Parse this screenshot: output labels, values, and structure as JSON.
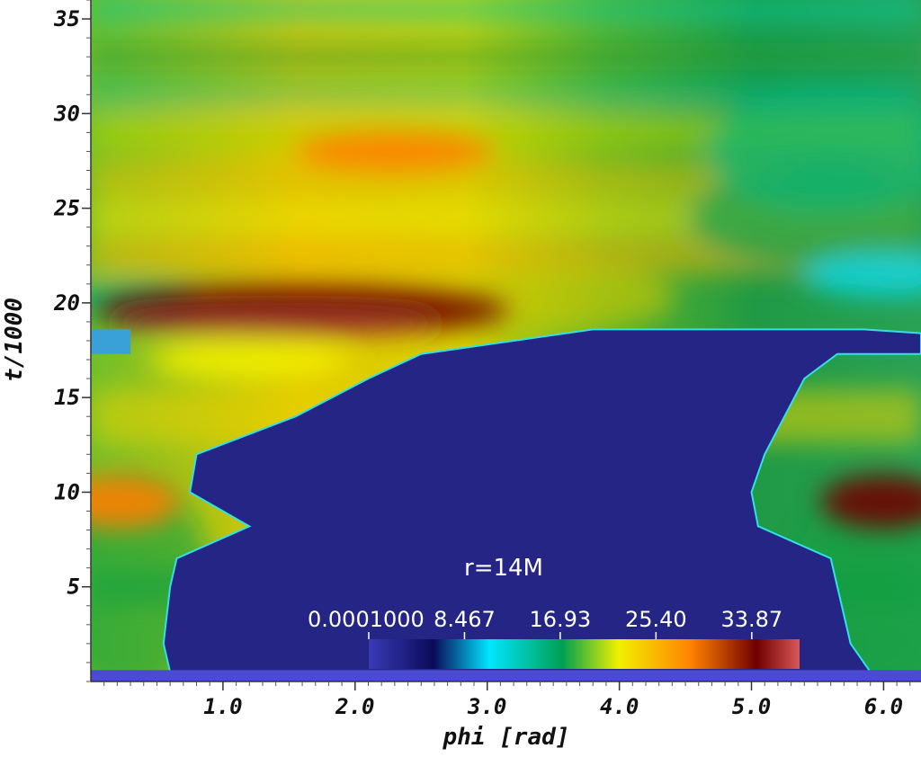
{
  "chart_data": {
    "type": "heatmap",
    "title": "",
    "xlabel": "phi [rad]",
    "ylabel": "t/1000",
    "xlim": [
      0.0,
      6.283
    ],
    "ylim": [
      0.0,
      36.0
    ],
    "x_ticks": [
      1.0,
      2.0,
      3.0,
      4.0,
      5.0,
      6.0
    ],
    "x_tick_labels": [
      "1.0",
      "2.0",
      "3.0",
      "4.0",
      "5.0",
      "6.0"
    ],
    "y_ticks": [
      5,
      10,
      15,
      20,
      25,
      30,
      35
    ],
    "y_tick_labels": [
      "5",
      "10",
      "15",
      "20",
      "25",
      "30",
      "35"
    ],
    "annotation": "r=14M",
    "colorbar": {
      "min": 0.0001,
      "max": 38.1,
      "ticks": [
        0.0001,
        8.467,
        16.93,
        25.4,
        33.87
      ],
      "tick_labels": [
        "0.0001000",
        "8.467",
        "16.93",
        "25.40",
        "33.87"
      ],
      "colormap_stops": [
        "#3a3ab8",
        "#0a0a5a",
        "#00e6ff",
        "#00a050",
        "#f0f000",
        "#ff8000",
        "#700000",
        "#d85858"
      ]
    },
    "empty_region": {
      "description_value": 0.0001,
      "t_top": 18.6,
      "boundary": [
        {
          "t": 0.5,
          "phi_left": 0.6,
          "phi_right": 5.9
        },
        {
          "t": 2.0,
          "phi_left": 0.55,
          "phi_right": 5.75
        },
        {
          "t": 5.0,
          "phi_left": 0.6,
          "phi_right": 5.65
        },
        {
          "t": 6.5,
          "phi_left": 0.65,
          "phi_right": 5.6
        },
        {
          "t": 8.2,
          "phi_left": 1.2,
          "phi_right": 5.05
        },
        {
          "t": 10.0,
          "phi_left": 0.75,
          "phi_right": 5.0
        },
        {
          "t": 12.0,
          "phi_left": 0.8,
          "phi_right": 5.1
        },
        {
          "t": 14.0,
          "phi_left": 1.55,
          "phi_right": 5.25
        },
        {
          "t": 16.0,
          "phi_left": 2.1,
          "phi_right": 5.4
        },
        {
          "t": 17.3,
          "phi_left": 2.5,
          "phi_right": 5.65
        },
        {
          "t": 18.6,
          "phi_left": 3.8,
          "phi_right": 5.85
        }
      ]
    },
    "hotspots": [
      {
        "phi": 1.6,
        "t": 19.6,
        "value": 33.0
      },
      {
        "phi": 0.2,
        "t": 9.5,
        "value": 28.0
      },
      {
        "phi": 6.0,
        "t": 9.5,
        "value": 30.0
      },
      {
        "phi": 2.3,
        "t": 28.0,
        "value": 24.0
      },
      {
        "phi": 1.2,
        "t": 17.0,
        "value": 22.0
      }
    ]
  }
}
